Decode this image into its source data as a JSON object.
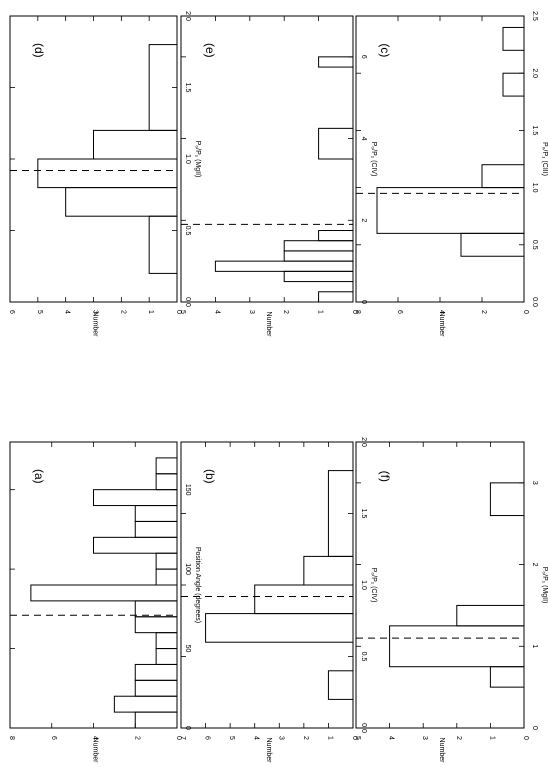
{
  "chart_data": [
    {
      "type": "bar",
      "panel_label": "(a)",
      "xlabel": "Position Angle (degrees)",
      "ylabel": "Number",
      "xlim": [
        0,
        180
      ],
      "ylim": [
        0,
        8
      ],
      "xticks": [
        0,
        50,
        100,
        150
      ],
      "yticks": [
        0,
        2,
        4,
        6,
        8
      ],
      "dashed_line_x": 71,
      "bins": [
        {
          "x0": 0,
          "x1": 10,
          "value": 2
        },
        {
          "x0": 10,
          "x1": 20,
          "value": 3
        },
        {
          "x0": 20,
          "x1": 30,
          "value": 2
        },
        {
          "x0": 30,
          "x1": 40,
          "value": 2
        },
        {
          "x0": 40,
          "x1": 50,
          "value": 1
        },
        {
          "x0": 50,
          "x1": 60,
          "value": 1
        },
        {
          "x0": 60,
          "x1": 70,
          "value": 2
        },
        {
          "x0": 70,
          "x1": 80,
          "value": 2
        },
        {
          "x0": 80,
          "x1": 90,
          "value": 7
        },
        {
          "x0": 90,
          "x1": 100,
          "value": 1
        },
        {
          "x0": 100,
          "x1": 110,
          "value": 1
        },
        {
          "x0": 110,
          "x1": 120,
          "value": 4
        },
        {
          "x0": 120,
          "x1": 130,
          "value": 2
        },
        {
          "x0": 130,
          "x1": 140,
          "value": 2
        },
        {
          "x0": 140,
          "x1": 150,
          "value": 4
        },
        {
          "x0": 150,
          "x1": 160,
          "value": 1
        },
        {
          "x0": 160,
          "x1": 170,
          "value": 1
        }
      ]
    },
    {
      "type": "bar",
      "panel_label": "(b)",
      "xlabel": "P₀/P₁ (CIV)",
      "ylabel": "Number",
      "xlim": [
        0,
        2.0
      ],
      "ylim": [
        0,
        7
      ],
      "xticks": [
        0.0,
        0.5,
        1.0,
        1.5,
        2.0
      ],
      "yticks": [
        0,
        1,
        2,
        3,
        4,
        5,
        6,
        7
      ],
      "dashed_line_x": 0.92,
      "bins": [
        {
          "x0": 0.2,
          "x1": 0.4,
          "value": 1
        },
        {
          "x0": 0.6,
          "x1": 0.8,
          "value": 6
        },
        {
          "x0": 0.8,
          "x1": 1.0,
          "value": 4
        },
        {
          "x0": 1.0,
          "x1": 1.2,
          "value": 2
        },
        {
          "x0": 1.2,
          "x1": 1.8,
          "value": 1
        }
      ]
    },
    {
      "type": "bar",
      "panel_label": "(c)",
      "xlabel": "P₀/P₁ (CIII)",
      "ylabel": "Number",
      "xlim": [
        0,
        2.5
      ],
      "ylim": [
        0,
        8
      ],
      "xticks": [
        0.0,
        0.5,
        1.0,
        1.5,
        2.0,
        2.5
      ],
      "yticks": [
        0,
        2,
        4,
        6,
        8
      ],
      "dashed_line_x": 0.95,
      "bins": [
        {
          "x0": 0.4,
          "x1": 0.6,
          "value": 3
        },
        {
          "x0": 0.6,
          "x1": 1.0,
          "value": 7
        },
        {
          "x0": 1.0,
          "x1": 1.2,
          "value": 2
        },
        {
          "x0": 1.8,
          "x1": 2.0,
          "value": 1
        },
        {
          "x0": 2.2,
          "x1": 2.4,
          "value": 1
        }
      ]
    },
    {
      "type": "bar",
      "panel_label": "(d)",
      "xlabel": "P₀/P₁ (MgII)",
      "ylabel": "Number",
      "xlim": [
        0,
        2.0
      ],
      "ylim": [
        0,
        6
      ],
      "xticks": [
        0.0,
        0.5,
        1.0,
        1.5,
        2.0
      ],
      "yticks": [
        0,
        1,
        2,
        3,
        4,
        5,
        6
      ],
      "dashed_line_x": 0.92,
      "bins": [
        {
          "x0": 0.2,
          "x1": 0.6,
          "value": 1
        },
        {
          "x0": 0.6,
          "x1": 0.8,
          "value": 4
        },
        {
          "x0": 0.8,
          "x1": 1.0,
          "value": 5
        },
        {
          "x0": 1.0,
          "x1": 1.2,
          "value": 3
        },
        {
          "x0": 1.2,
          "x1": 1.8,
          "value": 1
        }
      ]
    },
    {
      "type": "bar",
      "panel_label": "(e)",
      "xlabel": "P₀/P₁ (CIV)",
      "ylabel": "Number",
      "xlim": [
        0,
        7
      ],
      "ylim": [
        0,
        5
      ],
      "xticks": [
        0,
        2,
        4,
        6
      ],
      "yticks": [
        0,
        1,
        2,
        3,
        4,
        5
      ],
      "dashed_line_x": 1.9,
      "bins": [
        {
          "x0": 0.0,
          "x1": 0.25,
          "value": 1
        },
        {
          "x0": 0.5,
          "x1": 0.75,
          "value": 2
        },
        {
          "x0": 0.75,
          "x1": 1.0,
          "value": 4
        },
        {
          "x0": 1.0,
          "x1": 1.25,
          "value": 2
        },
        {
          "x0": 1.25,
          "x1": 1.5,
          "value": 2
        },
        {
          "x0": 1.5,
          "x1": 1.75,
          "value": 1
        },
        {
          "x0": 3.5,
          "x1": 4.25,
          "value": 1
        },
        {
          "x0": 5.75,
          "x1": 6.0,
          "value": 1
        }
      ]
    },
    {
      "type": "bar",
      "panel_label": "(f)",
      "xlabel": "P₀/P₁ (MgII)",
      "ylabel": "Number",
      "xlim": [
        0,
        3.5
      ],
      "ylim": [
        0,
        5
      ],
      "xticks": [
        0,
        1,
        2,
        3
      ],
      "yticks": [
        0,
        1,
        2,
        3,
        4,
        5
      ],
      "dashed_line_x": 1.1,
      "bins": [
        {
          "x0": 0.5,
          "x1": 0.75,
          "value": 1
        },
        {
          "x0": 0.75,
          "x1": 1.25,
          "value": 4
        },
        {
          "x0": 1.25,
          "x1": 1.5,
          "value": 2
        },
        {
          "x0": 2.6,
          "x1": 3.0,
          "value": 1
        }
      ]
    }
  ]
}
